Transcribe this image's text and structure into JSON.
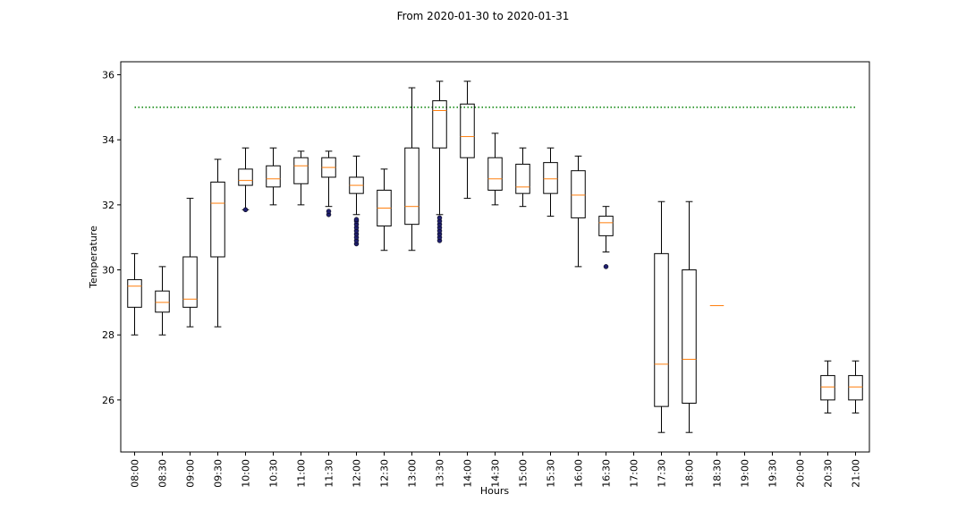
{
  "chart_data": {
    "type": "box",
    "title": "From 2020-01-30 to 2020-01-31",
    "xlabel": "Hours",
    "ylabel": "Temperature",
    "ylim": [
      24.4,
      36.4
    ],
    "yticks": [
      26,
      28,
      30,
      32,
      34,
      36
    ],
    "reference_line": {
      "y": 35,
      "style": "dotted",
      "color": "#008000"
    },
    "colors": {
      "box": "#000000",
      "median": "#ff7f0e",
      "outlier": "#1f1f6e"
    },
    "categories": [
      "08:00",
      "08:30",
      "09:00",
      "09:30",
      "10:00",
      "10:30",
      "11:00",
      "11:30",
      "12:00",
      "12:30",
      "13:00",
      "13:30",
      "14:00",
      "14:30",
      "15:00",
      "15:30",
      "16:00",
      "16:30",
      "17:00",
      "17:30",
      "18:00",
      "18:30",
      "19:00",
      "19:30",
      "20:00",
      "20:30",
      "21:00"
    ],
    "boxes": [
      {
        "category": "08:00",
        "whisker_low": 28.0,
        "q1": 28.85,
        "median": 29.5,
        "q3": 29.7,
        "whisker_high": 30.5,
        "outliers": []
      },
      {
        "category": "08:30",
        "whisker_low": 28.0,
        "q1": 28.7,
        "median": 29.0,
        "q3": 29.35,
        "whisker_high": 30.1,
        "outliers": []
      },
      {
        "category": "09:00",
        "whisker_low": 28.25,
        "q1": 28.85,
        "median": 29.1,
        "q3": 30.4,
        "whisker_high": 32.2,
        "outliers": []
      },
      {
        "category": "09:30",
        "whisker_low": 28.25,
        "q1": 30.4,
        "median": 32.05,
        "q3": 32.7,
        "whisker_high": 33.4,
        "outliers": []
      },
      {
        "category": "10:00",
        "whisker_low": 31.85,
        "q1": 32.6,
        "median": 32.75,
        "q3": 33.1,
        "whisker_high": 33.75,
        "outliers": [
          31.85
        ]
      },
      {
        "category": "10:30",
        "whisker_low": 32.0,
        "q1": 32.55,
        "median": 32.8,
        "q3": 33.2,
        "whisker_high": 33.75,
        "outliers": []
      },
      {
        "category": "11:00",
        "whisker_low": 32.0,
        "q1": 32.65,
        "median": 33.2,
        "q3": 33.45,
        "whisker_high": 33.65,
        "outliers": []
      },
      {
        "category": "11:30",
        "whisker_low": 31.95,
        "q1": 32.85,
        "median": 33.15,
        "q3": 33.45,
        "whisker_high": 33.65,
        "outliers": [
          31.7,
          31.8
        ]
      },
      {
        "category": "12:00",
        "whisker_low": 31.7,
        "q1": 32.35,
        "median": 32.6,
        "q3": 32.85,
        "whisker_high": 33.5,
        "outliers": [
          30.8,
          30.9,
          31.0,
          31.1,
          31.2,
          31.3,
          31.4,
          31.5,
          31.55
        ]
      },
      {
        "category": "12:30",
        "whisker_low": 30.6,
        "q1": 31.35,
        "median": 31.9,
        "q3": 32.45,
        "whisker_high": 33.1,
        "outliers": []
      },
      {
        "category": "13:00",
        "whisker_low": 30.6,
        "q1": 31.4,
        "median": 31.95,
        "q3": 33.75,
        "whisker_high": 35.6,
        "outliers": []
      },
      {
        "category": "13:30",
        "whisker_low": 31.7,
        "q1": 33.75,
        "median": 34.9,
        "q3": 35.2,
        "whisker_high": 35.8,
        "outliers": [
          30.9,
          31.0,
          31.1,
          31.2,
          31.3,
          31.4,
          31.5,
          31.6
        ]
      },
      {
        "category": "14:00",
        "whisker_low": 32.2,
        "q1": 33.45,
        "median": 34.1,
        "q3": 35.1,
        "whisker_high": 35.8,
        "outliers": []
      },
      {
        "category": "14:30",
        "whisker_low": 32.0,
        "q1": 32.45,
        "median": 32.8,
        "q3": 33.45,
        "whisker_high": 34.2,
        "outliers": []
      },
      {
        "category": "15:00",
        "whisker_low": 31.95,
        "q1": 32.35,
        "median": 32.55,
        "q3": 33.25,
        "whisker_high": 33.75,
        "outliers": []
      },
      {
        "category": "15:30",
        "whisker_low": 31.65,
        "q1": 32.35,
        "median": 32.8,
        "q3": 33.3,
        "whisker_high": 33.75,
        "outliers": []
      },
      {
        "category": "16:00",
        "whisker_low": 30.1,
        "q1": 31.6,
        "median": 32.3,
        "q3": 33.05,
        "whisker_high": 33.5,
        "outliers": []
      },
      {
        "category": "16:30",
        "whisker_low": 30.55,
        "q1": 31.05,
        "median": 31.45,
        "q3": 31.65,
        "whisker_high": 31.95,
        "outliers": [
          30.1
        ]
      },
      {
        "category": "17:00",
        "empty": true
      },
      {
        "category": "17:30",
        "whisker_low": 25.0,
        "q1": 25.8,
        "median": 27.1,
        "q3": 30.5,
        "whisker_high": 32.1,
        "outliers": []
      },
      {
        "category": "18:00",
        "whisker_low": 25.0,
        "q1": 25.9,
        "median": 27.25,
        "q3": 30.0,
        "whisker_high": 32.1,
        "outliers": []
      },
      {
        "category": "18:30",
        "whisker_low": 28.9,
        "q1": 28.9,
        "median": 28.9,
        "q3": 28.9,
        "whisker_high": 28.9,
        "outliers": []
      },
      {
        "category": "19:00",
        "empty": true
      },
      {
        "category": "19:30",
        "empty": true
      },
      {
        "category": "20:00",
        "empty": true
      },
      {
        "category": "20:30",
        "whisker_low": 25.6,
        "q1": 26.0,
        "median": 26.4,
        "q3": 26.75,
        "whisker_high": 27.2,
        "outliers": []
      },
      {
        "category": "21:00",
        "whisker_low": 25.6,
        "q1": 26.0,
        "median": 26.4,
        "q3": 26.75,
        "whisker_high": 27.2,
        "outliers": []
      }
    ]
  }
}
